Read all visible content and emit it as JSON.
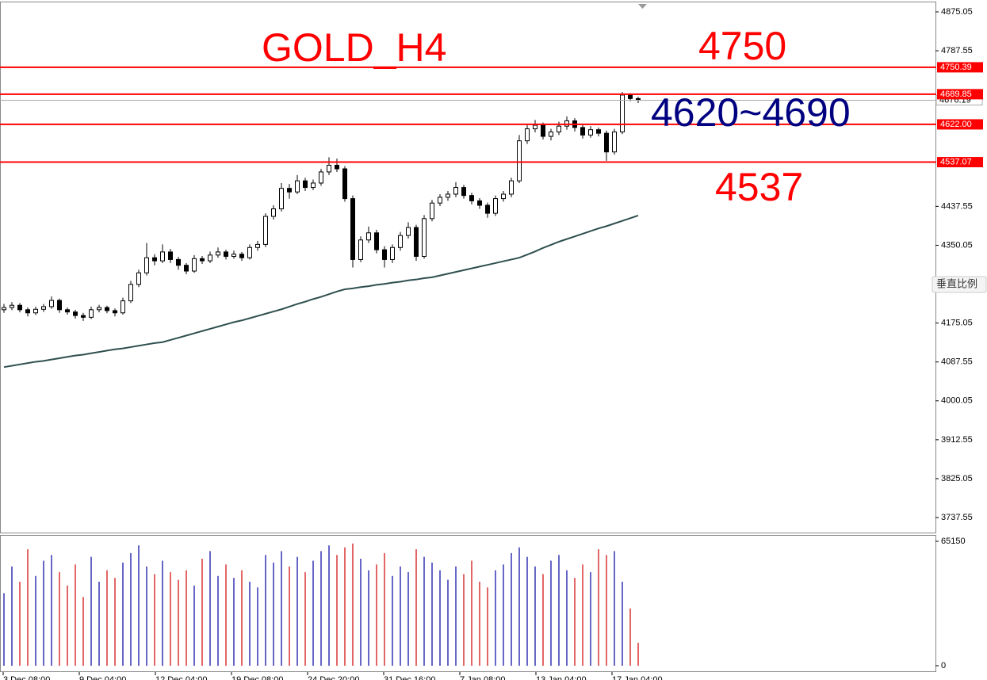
{
  "chart_data": {
    "type": "candlestick",
    "title": "GOLD_H4",
    "annotations": [
      {
        "text": "4750",
        "color": "#ff0000"
      },
      {
        "text": "4620~4690",
        "color": "#000080"
      },
      {
        "text": "4537",
        "color": "#ff0000"
      }
    ],
    "button": "垂直比例",
    "ylim": [
      3703.7,
      4898.2
    ],
    "yticks": [
      4875.05,
      4787.55,
      4437.55,
      4350.05,
      4175.05,
      4087.55,
      4000.05,
      3912.55,
      3825.05,
      3737.55
    ],
    "hlines": [
      {
        "value": 4750.39,
        "label": "4750.39"
      },
      {
        "value": 4689.85,
        "label": "4689.85"
      },
      {
        "value": 4622,
        "label": "4622.00"
      },
      {
        "value": 4537.07,
        "label": "4537.07"
      }
    ],
    "hline_color": "#ff0000",
    "current_price": 4676.19,
    "xticks": [
      "3 Dec 08:00",
      "9 Dec 04:00",
      "12 Dec 04:00",
      "19 Dec 08:00",
      "24 Dec 20:00",
      "31 Dec 16:00",
      "7 Jan 08:00",
      "13 Jan 04:00",
      "17 Jan 04:00"
    ],
    "candle_color": "#000000",
    "candles": [
      [
        4205,
        4218,
        4198,
        4210
      ],
      [
        4210,
        4222,
        4204,
        4215
      ],
      [
        4215,
        4220,
        4199,
        4205
      ],
      [
        4205,
        4210,
        4190,
        4198
      ],
      [
        4198,
        4212,
        4193,
        4206
      ],
      [
        4206,
        4218,
        4200,
        4212
      ],
      [
        4212,
        4235,
        4207,
        4226
      ],
      [
        4226,
        4230,
        4198,
        4205
      ],
      [
        4205,
        4210,
        4194,
        4200
      ],
      [
        4200,
        4205,
        4185,
        4192
      ],
      [
        4192,
        4198,
        4180,
        4188
      ],
      [
        4188,
        4212,
        4184,
        4205
      ],
      [
        4205,
        4216,
        4199,
        4210
      ],
      [
        4210,
        4214,
        4197,
        4203
      ],
      [
        4203,
        4208,
        4190,
        4198
      ],
      [
        4198,
        4232,
        4194,
        4225
      ],
      [
        4225,
        4270,
        4220,
        4262
      ],
      [
        4262,
        4295,
        4256,
        4288
      ],
      [
        4288,
        4355,
        4282,
        4322
      ],
      [
        4322,
        4330,
        4305,
        4315
      ],
      [
        4315,
        4352,
        4310,
        4335
      ],
      [
        4335,
        4342,
        4310,
        4318
      ],
      [
        4318,
        4324,
        4295,
        4305
      ],
      [
        4305,
        4310,
        4285,
        4292
      ],
      [
        4292,
        4328,
        4288,
        4320
      ],
      [
        4320,
        4326,
        4308,
        4315
      ],
      [
        4315,
        4336,
        4310,
        4328
      ],
      [
        4328,
        4345,
        4322,
        4335
      ],
      [
        4335,
        4340,
        4318,
        4325
      ],
      [
        4325,
        4338,
        4320,
        4330
      ],
      [
        4330,
        4335,
        4315,
        4322
      ],
      [
        4322,
        4352,
        4318,
        4345
      ],
      [
        4345,
        4360,
        4338,
        4352
      ],
      [
        4352,
        4422,
        4346,
        4415
      ],
      [
        4415,
        4440,
        4408,
        4432
      ],
      [
        4432,
        4490,
        4426,
        4478
      ],
      [
        4478,
        4488,
        4455,
        4470
      ],
      [
        4470,
        4508,
        4465,
        4495
      ],
      [
        4495,
        4502,
        4472,
        4480
      ],
      [
        4480,
        4498,
        4474,
        4490
      ],
      [
        4490,
        4522,
        4484,
        4515
      ],
      [
        4515,
        4548,
        4508,
        4530
      ],
      [
        4530,
        4545,
        4515,
        4522
      ],
      [
        4522,
        4528,
        4448,
        4455
      ],
      [
        4455,
        4462,
        4300,
        4318
      ],
      [
        4318,
        4370,
        4312,
        4362
      ],
      [
        4362,
        4392,
        4355,
        4378
      ],
      [
        4378,
        4385,
        4332,
        4340
      ],
      [
        4340,
        4348,
        4300,
        4318
      ],
      [
        4318,
        4352,
        4310,
        4345
      ],
      [
        4345,
        4380,
        4338,
        4372
      ],
      [
        4372,
        4402,
        4365,
        4390
      ],
      [
        4390,
        4396,
        4315,
        4325
      ],
      [
        4325,
        4418,
        4320,
        4410
      ],
      [
        4410,
        4452,
        4404,
        4445
      ],
      [
        4445,
        4465,
        4438,
        4458
      ],
      [
        4458,
        4472,
        4450,
        4465
      ],
      [
        4465,
        4492,
        4458,
        4480
      ],
      [
        4480,
        4486,
        4455,
        4462
      ],
      [
        4462,
        4468,
        4442,
        4450
      ],
      [
        4450,
        4456,
        4432,
        4440
      ],
      [
        4440,
        4446,
        4412,
        4422
      ],
      [
        4422,
        4462,
        4416,
        4455
      ],
      [
        4455,
        4472,
        4448,
        4465
      ],
      [
        4465,
        4502,
        4458,
        4495
      ],
      [
        4495,
        4598,
        4490,
        4585
      ],
      [
        4585,
        4620,
        4578,
        4612
      ],
      [
        4612,
        4632,
        4604,
        4620
      ],
      [
        4620,
        4626,
        4588,
        4595
      ],
      [
        4595,
        4612,
        4586,
        4605
      ],
      [
        4605,
        4628,
        4598,
        4618
      ],
      [
        4618,
        4640,
        4610,
        4630
      ],
      [
        4630,
        4636,
        4606,
        4615
      ],
      [
        4615,
        4620,
        4590,
        4598
      ],
      [
        4598,
        4618,
        4592,
        4610
      ],
      [
        4610,
        4615,
        4595,
        4602
      ],
      [
        4602,
        4608,
        4540,
        4560
      ],
      [
        4560,
        4612,
        4554,
        4605
      ],
      [
        4605,
        4695,
        4600,
        4688
      ],
      [
        4688,
        4692,
        4674,
        4680
      ],
      [
        4680,
        4684,
        4670,
        4676.19
      ]
    ],
    "ma_color": "#2f4f4f",
    "ma": [
      4076,
      4079,
      4082,
      4085,
      4088,
      4090,
      4093,
      4096,
      4099,
      4102,
      4104,
      4107,
      4110,
      4113,
      4116,
      4118,
      4121,
      4124,
      4127,
      4130,
      4132,
      4137,
      4142,
      4147,
      4152,
      4157,
      4162,
      4167,
      4172,
      4177,
      4181,
      4186,
      4191,
      4196,
      4201,
      4206,
      4212,
      4218,
      4223,
      4229,
      4234,
      4240,
      4246,
      4251,
      4253,
      4256,
      4258,
      4261,
      4263,
      4266,
      4268,
      4271,
      4273,
      4276,
      4278,
      4282,
      4286,
      4290,
      4294,
      4298,
      4302,
      4306,
      4310,
      4314,
      4318,
      4322,
      4329,
      4336,
      4344,
      4351,
      4358,
      4364,
      4370,
      4376,
      4382,
      4388,
      4393,
      4399,
      4405,
      4411,
      4417
    ],
    "volume": [
      38000,
      52000,
      44000,
      61000,
      47000,
      55000,
      58000,
      49000,
      42000,
      53000,
      36000,
      57000,
      44000,
      50000,
      46000,
      54000,
      59000,
      63000,
      52000,
      48000,
      55000,
      49000,
      45000,
      50000,
      42000,
      56000,
      60000,
      47000,
      53000,
      46000,
      50000,
      44000,
      41000,
      58000,
      54000,
      60000,
      52000,
      57000,
      49000,
      55000,
      60000,
      63000,
      58000,
      62000,
      64000,
      56000,
      50000,
      53000,
      59000,
      47000,
      52000,
      49000,
      61000,
      57000,
      54000,
      50000,
      45000,
      52000,
      48000,
      55000,
      44000,
      41000,
      50000,
      53000,
      59000,
      62000,
      57000,
      52000,
      48000,
      55000,
      58000,
      50000,
      46000,
      53000,
      49000,
      61000,
      58000,
      60000,
      44000,
      30000,
      12000
    ],
    "volume_ylim": [
      0,
      65150
    ],
    "volume_yticks": [
      65150,
      0
    ],
    "volume_up_color": "#0000a0",
    "volume_down_color": "#d00000"
  }
}
